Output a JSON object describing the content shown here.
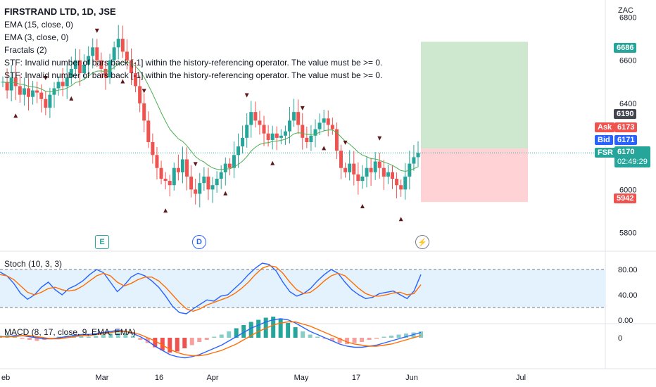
{
  "header": {
    "title": "FIRSTRAND LTD, 1D, JSE",
    "currency": "ZAC",
    "indicators": [
      "EMA (15, close, 0)",
      "EMA (3, close, 0)",
      "Fractals (2)",
      "STF: Invalid number of bars back [-1] within the history-referencing operator. The value must be >= 0.",
      "STF: Invalid number of bars back [-1] within the history-referencing operator. The value must be >= 0."
    ]
  },
  "price_axis": {
    "ticks": [
      "6800",
      "6600",
      "6400",
      "6000",
      "5800"
    ],
    "tags": {
      "target": "6686",
      "high_line": "6190",
      "ask_label": "Ask",
      "ask": "6173",
      "bid_label": "Bid",
      "bid": "6171",
      "symbol": "FSR",
      "last": "6170",
      "countdown": "02:49:29",
      "stop": "5942"
    }
  },
  "time_axis": [
    "eb",
    "Mar",
    "16",
    "Apr",
    "May",
    "17",
    "Jun",
    "Jul"
  ],
  "events": {
    "earnings": "E",
    "dividend": "D",
    "split": "⚡"
  },
  "stoch": {
    "label": "Stoch (10, 3, 3)",
    "ticks": [
      "80.00",
      "40.00",
      "0.00"
    ],
    "upper": 80,
    "lower": 20
  },
  "macd": {
    "label": "MACD (8, 17, close, 9, EMA, EMA)",
    "ticks": [
      "0"
    ]
  },
  "colors": {
    "up": "#26a69a",
    "down": "#ef5350",
    "ema15": "#4caf50",
    "ema3": "#ff9800",
    "stochK": "#2962ff",
    "stochD": "#ff6d00",
    "profit": "#c8e6c9",
    "loss": "#ffcdd2",
    "band": "#e3f2fd",
    "accent": "#2962ff"
  },
  "chart_data": {
    "type": "candlestick",
    "ylim": [
      5720,
      6880
    ],
    "closes": [
      6500,
      6460,
      6520,
      6480,
      6440,
      6470,
      6430,
      6460,
      6450,
      6420,
      6380,
      6440,
      6470,
      6500,
      6480,
      6520,
      6560,
      6600,
      6540,
      6580,
      6620,
      6660,
      6600,
      6560,
      6520,
      6600,
      6660,
      6700,
      6640,
      6600,
      6540,
      6480,
      6400,
      6320,
      6220,
      6160,
      6100,
      6050,
      6040,
      6020,
      6100,
      6080,
      6140,
      6060,
      6000,
      5980,
      6030,
      6060,
      6000,
      6020,
      6050,
      6080,
      6120,
      6100,
      6160,
      6200,
      6240,
      6300,
      6360,
      6320,
      6300,
      6260,
      6230,
      6260,
      6240,
      6250,
      6270,
      6320,
      6360,
      6300,
      6240,
      6220,
      6250,
      6280,
      6310,
      6330,
      6300,
      6280,
      6180,
      6100,
      6080,
      6120,
      6070,
      6040,
      6060,
      6100,
      6080,
      6130,
      6100,
      6060,
      6080,
      6050,
      6020,
      6000,
      6060,
      6120,
      6150,
      6170
    ],
    "stoch_k": [
      76,
      70,
      58,
      42,
      33,
      40,
      52,
      60,
      48,
      40,
      50,
      55,
      62,
      72,
      80,
      75,
      60,
      45,
      55,
      68,
      74,
      70,
      62,
      52,
      38,
      22,
      12,
      10,
      18,
      25,
      32,
      30,
      38,
      40,
      50,
      60,
      72,
      82,
      90,
      88,
      78,
      60,
      45,
      38,
      42,
      50,
      62,
      72,
      80,
      74,
      60,
      48,
      40,
      34,
      36,
      42,
      44,
      46,
      40,
      34,
      46,
      72
    ],
    "stoch_d": [
      72,
      70,
      64,
      54,
      44,
      40,
      44,
      50,
      52,
      48,
      46,
      48,
      54,
      62,
      70,
      74,
      70,
      60,
      54,
      58,
      64,
      68,
      68,
      62,
      52,
      40,
      28,
      18,
      14,
      18,
      24,
      28,
      32,
      36,
      42,
      50,
      60,
      72,
      82,
      86,
      84,
      74,
      60,
      48,
      42,
      44,
      52,
      62,
      70,
      74,
      70,
      60,
      50,
      42,
      38,
      38,
      40,
      43,
      44,
      40,
      42,
      56
    ],
    "macd_hist": [
      2,
      3,
      2,
      -1,
      -2,
      -3,
      -2,
      -1,
      1,
      2,
      3,
      2,
      1,
      2,
      3,
      4,
      5,
      4,
      2,
      -2,
      -5,
      -9,
      -12,
      -14,
      -13,
      -10,
      -7,
      -4,
      -2,
      1,
      3,
      6,
      9,
      12,
      15,
      17,
      19,
      20,
      18,
      14,
      10,
      6,
      3,
      1,
      -1,
      -3,
      -5,
      -6,
      -5,
      -4,
      -2,
      -1,
      1,
      2,
      3,
      4,
      5,
      6
    ],
    "macd_line": [
      1,
      1,
      2,
      2,
      1,
      0,
      -1,
      -1,
      0,
      1,
      2,
      3,
      3,
      4,
      5,
      6,
      7,
      6,
      4,
      1,
      -3,
      -8,
      -12,
      -16,
      -18,
      -19,
      -18,
      -16,
      -13,
      -10,
      -7,
      -3,
      1,
      5,
      9,
      12,
      15,
      17,
      18,
      17,
      14,
      10,
      6,
      3,
      0,
      -3,
      -6,
      -8,
      -9,
      -9,
      -8,
      -7,
      -5,
      -3,
      -1,
      1,
      3,
      5
    ],
    "signal_line": [
      1,
      1,
      1,
      2,
      2,
      1,
      0,
      -1,
      -1,
      0,
      1,
      2,
      2,
      3,
      4,
      5,
      6,
      6,
      5,
      3,
      0,
      -3,
      -7,
      -11,
      -14,
      -16,
      -17,
      -17,
      -16,
      -14,
      -12,
      -9,
      -6,
      -2,
      2,
      6,
      9,
      12,
      14,
      15,
      15,
      13,
      11,
      8,
      5,
      2,
      -1,
      -4,
      -6,
      -7,
      -8,
      -8,
      -7,
      -6,
      -4,
      -2,
      0,
      2
    ]
  }
}
